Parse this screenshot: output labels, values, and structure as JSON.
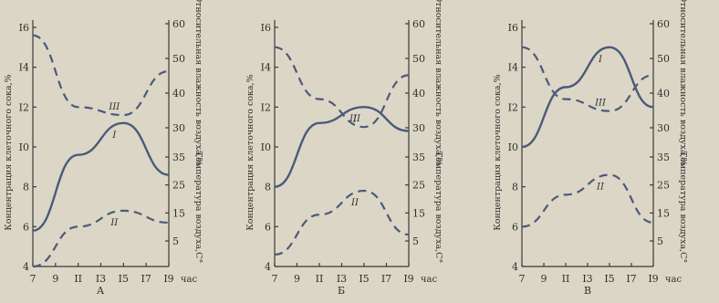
{
  "chart_data": [
    {
      "type": "line",
      "panel_label": "А",
      "x": [
        7,
        11,
        15,
        19
      ],
      "x_tick_labels": [
        "7",
        "9",
        "II",
        "I3",
        "I5",
        "I7",
        "I9",
        "час"
      ],
      "left_axis": {
        "label": "Концентрация клеточного сока,%",
        "ticks": [
          "4",
          "6",
          "8",
          "I0",
          "I2",
          "I4",
          "I6"
        ],
        "ylim": [
          4,
          16
        ]
      },
      "right_axis_top": {
        "label": "Относительная влажность воздуха,%",
        "ticks": [
          "30",
          "40",
          "50",
          "60"
        ],
        "ylim": [
          25,
          60
        ]
      },
      "right_axis_bottom": {
        "label": "Температура воздуха,С°",
        "ticks": [
          "5",
          "15",
          "25",
          "35"
        ],
        "ylim": [
          0,
          40
        ]
      },
      "series": [
        {
          "name": "I",
          "values": [
            5.8,
            9.6,
            11.2,
            8.6
          ]
        },
        {
          "name": "II",
          "values": [
            4.0,
            6.0,
            6.8,
            6.2
          ]
        },
        {
          "name": "III",
          "values": [
            15.6,
            12.0,
            11.6,
            13.8
          ]
        }
      ]
    },
    {
      "type": "line",
      "panel_label": "Б",
      "x": [
        7,
        11,
        15,
        19
      ],
      "x_tick_labels": [
        "7",
        "9",
        "II",
        "I3",
        "I5",
        "I7",
        "I9",
        "час"
      ],
      "left_axis": {
        "label": "Концентрация клеточного сока,%",
        "ticks": [
          "4",
          "6",
          "8",
          "I0",
          "I2",
          "I4",
          "I6"
        ],
        "ylim": [
          4,
          16
        ]
      },
      "right_axis_top": {
        "label": "Относительная влажность воздуха,%",
        "ticks": [
          "30",
          "40",
          "50",
          "60"
        ],
        "ylim": [
          25,
          60
        ]
      },
      "right_axis_bottom": {
        "label": "Температура воздуха,С°",
        "ticks": [
          "5",
          "15",
          "25",
          "35"
        ],
        "ylim": [
          0,
          40
        ]
      },
      "series": [
        {
          "name": "I",
          "values": [
            8.0,
            11.2,
            12.0,
            10.8
          ]
        },
        {
          "name": "II",
          "values": [
            4.6,
            6.6,
            7.8,
            5.6
          ]
        },
        {
          "name": "III",
          "values": [
            15.0,
            12.4,
            11.0,
            13.6
          ]
        }
      ]
    },
    {
      "type": "line",
      "panel_label": "В",
      "x": [
        7,
        11,
        15,
        19
      ],
      "x_tick_labels": [
        "7",
        "9",
        "II",
        "I3",
        "I5",
        "I7",
        "I9",
        "час"
      ],
      "left_axis": {
        "label": "Концентрация клеточного сока,%",
        "ticks": [
          "4",
          "6",
          "8",
          "I0",
          "I2",
          "I4",
          "I6"
        ],
        "ylim": [
          4,
          16
        ]
      },
      "right_axis_top": {
        "label": "Относительная влажность воздуха,%",
        "ticks": [
          "30",
          "40",
          "50",
          "60"
        ],
        "ylim": [
          25,
          60
        ]
      },
      "right_axis_bottom": {
        "label": "Температура воздуха,С°",
        "ticks": [
          "5",
          "15",
          "25",
          "35"
        ],
        "ylim": [
          0,
          40
        ]
      },
      "series": [
        {
          "name": "I",
          "values": [
            10.0,
            13.0,
            15.0,
            12.0
          ]
        },
        {
          "name": "II",
          "values": [
            6.0,
            7.6,
            8.6,
            6.2
          ]
        },
        {
          "name": "III",
          "values": [
            15.0,
            12.4,
            11.8,
            13.6
          ]
        }
      ]
    }
  ]
}
